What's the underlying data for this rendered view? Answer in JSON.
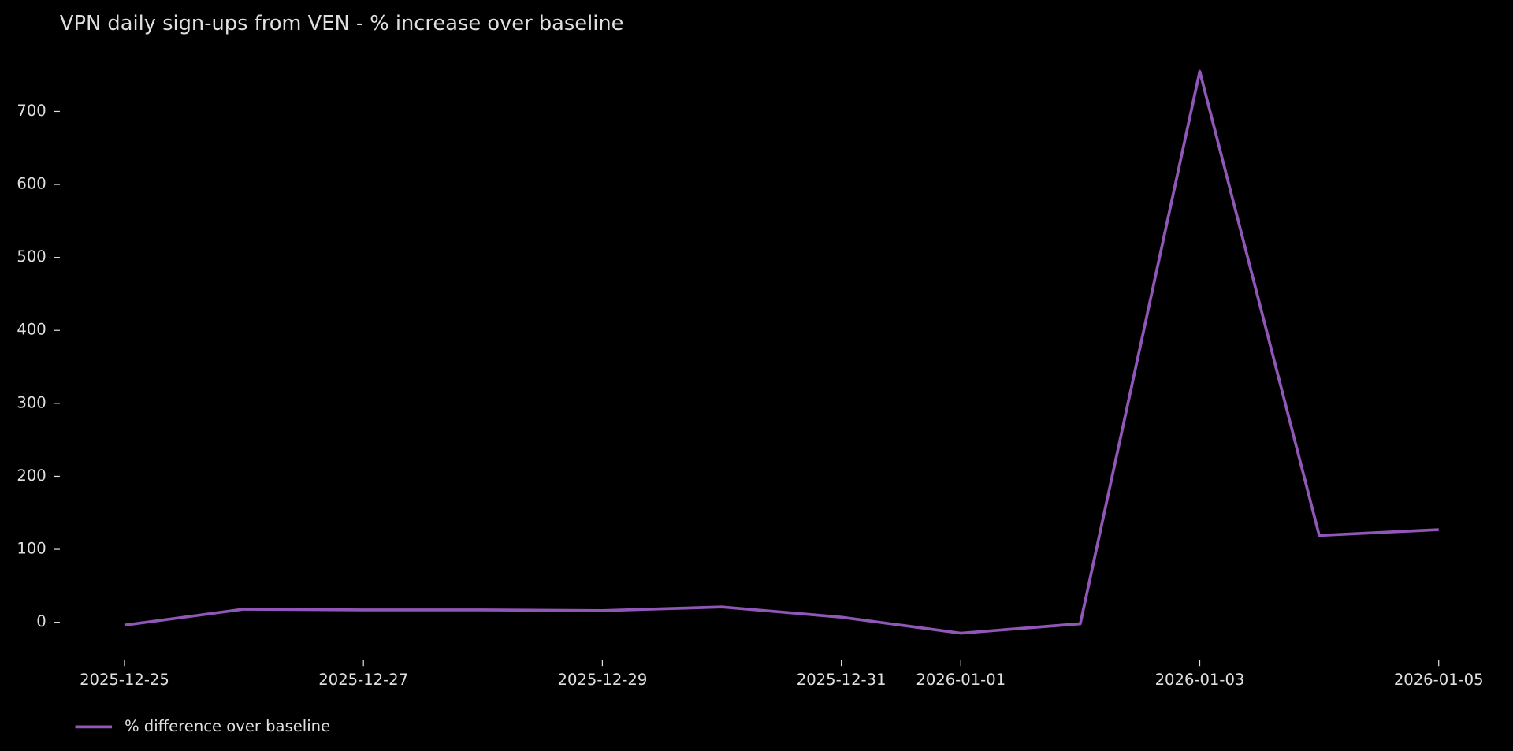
{
  "chart_data": {
    "type": "line",
    "title": "VPN daily sign-ups from VEN - % increase over baseline",
    "x": [
      "2025-12-25",
      "2025-12-26",
      "2025-12-27",
      "2025-12-28",
      "2025-12-29",
      "2025-12-30",
      "2025-12-31",
      "2026-01-01",
      "2026-01-02",
      "2026-01-03",
      "2026-01-04",
      "2026-01-05"
    ],
    "series": [
      {
        "name": "% difference over baseline",
        "color": "#9157b8",
        "values": [
          -4,
          18,
          17,
          17,
          16,
          21,
          7,
          -15,
          -2,
          755,
          119,
          127
        ]
      }
    ],
    "xlim": [
      "2025-12-25",
      "2026-01-05"
    ],
    "xticks": [
      "2025-12-25",
      "2025-12-27",
      "2025-12-29",
      "2025-12-31",
      "2026-01-01",
      "2026-01-03",
      "2026-01-05"
    ],
    "ylim": [
      -60,
      780
    ],
    "yticks": [
      0,
      100,
      200,
      300,
      400,
      500,
      600,
      700
    ],
    "grid": false,
    "legend": "lower left"
  }
}
